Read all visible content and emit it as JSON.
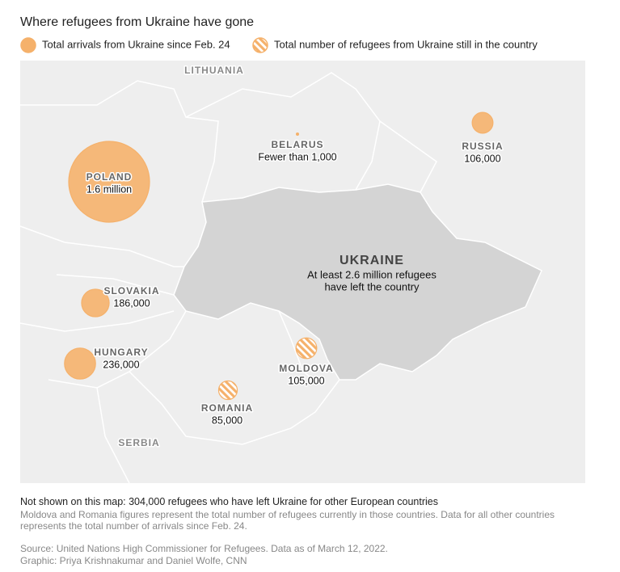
{
  "title": "Where refugees from Ukraine have gone",
  "legend": [
    {
      "label": "Total arrivals from Ukraine since Feb. 24",
      "pattern": "solid"
    },
    {
      "label": "Total number of refugees from Ukraine still in the country",
      "pattern": "hatched"
    }
  ],
  "countries": [
    {
      "name": "POLAND",
      "value": 1600000,
      "value_label": "1.6 million",
      "pattern": "solid"
    },
    {
      "name": "RUSSIA",
      "value": 106000,
      "value_label": "106,000",
      "pattern": "solid"
    },
    {
      "name": "SLOVAKIA",
      "value": 186000,
      "value_label": "186,000",
      "pattern": "solid"
    },
    {
      "name": "HUNGARY",
      "value": 236000,
      "value_label": "236,000",
      "pattern": "solid"
    },
    {
      "name": "MOLDOVA",
      "value": 105000,
      "value_label": "105,000",
      "pattern": "hatched"
    },
    {
      "name": "ROMANIA",
      "value": 85000,
      "value_label": "85,000",
      "pattern": "hatched"
    },
    {
      "name": "BELARUS",
      "value_label": "Fewer than 1,000",
      "pattern": "solid"
    }
  ],
  "ukraine": {
    "name": "UKRAINE",
    "note": [
      "At least 2.6 million refugees",
      "have left the country"
    ]
  },
  "other_labels": [
    "LITHUANIA",
    "SERBIA"
  ],
  "color": "#f5b16b",
  "notes": {
    "not_shown": "Not shown on this map: 304,000 refugees who have left Ukraine for other European countries",
    "detail": "Moldova and Romania figures represent the total number of refugees currently in those countries. Data for all other countries represents the total number of arrivals since Feb. 24.",
    "source": "Source: United Nations High Commissioner for Refugees. Data as of March 12, 2022.",
    "credit": "Graphic: Priya Krishnakumar and Daniel Wolfe, CNN"
  }
}
